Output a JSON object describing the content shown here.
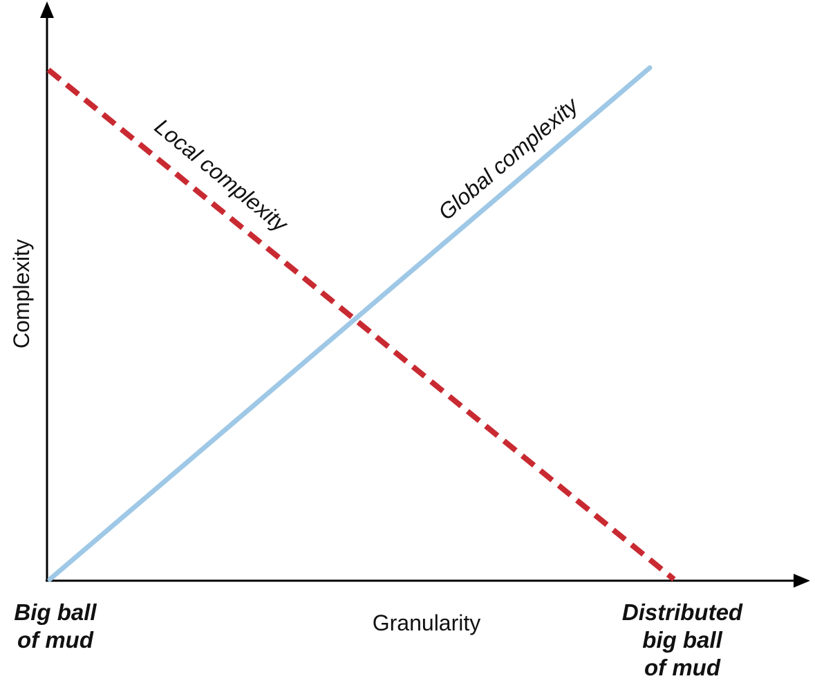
{
  "y_axis": {
    "label": "Complexity"
  },
  "x_axis": {
    "label": "Granularity",
    "left_label": [
      "Big ball",
      "of mud"
    ],
    "right_label": [
      "Distributed",
      "big ball",
      "of mud"
    ]
  },
  "lines": [
    {
      "label": "Local complexity"
    },
    {
      "label": "Global complexity"
    }
  ]
}
